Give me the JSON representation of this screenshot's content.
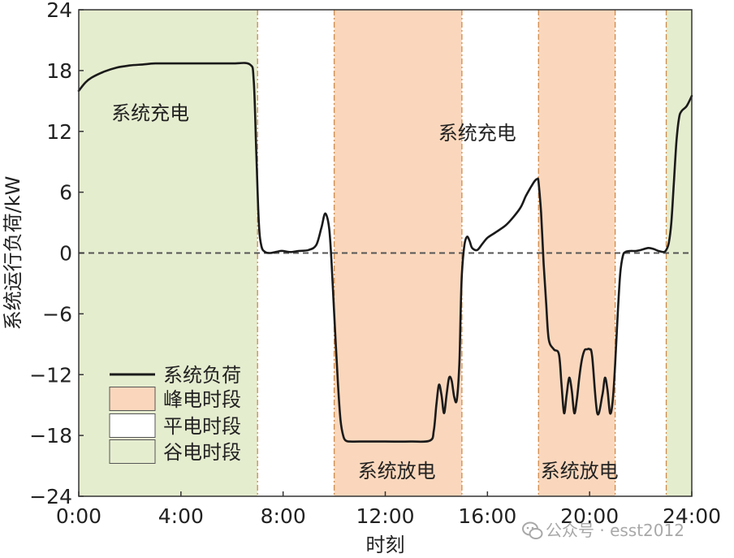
{
  "chart_data": {
    "type": "line",
    "title": "",
    "xlabel": "时刻",
    "ylabel": "系统运行负荷/kW",
    "xlim": [
      0,
      24
    ],
    "ylim": [
      -24,
      24
    ],
    "x_ticks": [
      0,
      4,
      8,
      12,
      16,
      20,
      24
    ],
    "x_tick_labels": [
      "0:00",
      "4:00",
      "8:00",
      "12:00",
      "16:00",
      "20:00",
      "24:00"
    ],
    "y_ticks": [
      24,
      18,
      12,
      6,
      0,
      -6,
      -12,
      -18,
      -24
    ],
    "y_tick_labels": [
      "24",
      "18",
      "12",
      "6",
      "0",
      "−6",
      "−12",
      "−18",
      "−24"
    ],
    "reference_line": {
      "y": 0,
      "style": "dashed"
    },
    "bands": [
      {
        "start": 0,
        "end": 7,
        "kind": "valley"
      },
      {
        "start": 7,
        "end": 10,
        "kind": "flat"
      },
      {
        "start": 10,
        "end": 15,
        "kind": "peak"
      },
      {
        "start": 15,
        "end": 18,
        "kind": "flat"
      },
      {
        "start": 18,
        "end": 21,
        "kind": "peak"
      },
      {
        "start": 21,
        "end": 23,
        "kind": "flat"
      },
      {
        "start": 23,
        "end": 24,
        "kind": "valley"
      }
    ],
    "band_colors": {
      "valley": "#e5edcf",
      "peak": "#fad7bc",
      "flat": "#ffffff"
    },
    "divider_color": "#d08a4a",
    "series": [
      {
        "name": "系统负荷",
        "color": "#1a1a1a",
        "x": [
          0,
          0.25,
          0.5,
          1,
          1.5,
          2,
          2.5,
          3,
          4,
          5,
          6,
          6.7,
          6.85,
          6.95,
          7.05,
          7.15,
          7.3,
          7.5,
          7.7,
          7.9,
          8,
          8.3,
          8.6,
          9,
          9.3,
          9.5,
          9.65,
          9.8,
          9.9,
          10,
          10.15,
          10.25,
          10.35,
          10.45,
          10.6,
          11,
          12,
          13,
          13.75,
          13.9,
          14,
          14.1,
          14.2,
          14.3,
          14.4,
          14.5,
          14.6,
          14.7,
          14.8,
          14.9,
          14.95,
          15,
          15.1,
          15.2,
          15.3,
          15.4,
          15.6,
          15.8,
          16,
          16.3,
          16.7,
          17,
          17.3,
          17.5,
          17.7,
          17.85,
          17.95,
          18,
          18.1,
          18.2,
          18.3,
          18.4,
          18.6,
          18.8,
          18.9,
          19,
          19.1,
          19.2,
          19.3,
          19.4,
          19.5,
          19.6,
          19.7,
          19.8,
          19.9,
          20,
          20.1,
          20.3,
          20.5,
          20.6,
          20.7,
          20.8,
          20.9,
          21,
          21.1,
          21.2,
          21.3,
          21.4,
          21.6,
          21.8,
          22,
          22.3,
          22.5,
          22.7,
          22.9,
          23,
          23.1,
          23.2,
          23.3,
          23.4,
          23.5,
          23.6,
          23.8,
          24
        ],
        "values": [
          16,
          16.8,
          17.3,
          17.9,
          18.3,
          18.5,
          18.6,
          18.7,
          18.7,
          18.7,
          18.7,
          18.6,
          17,
          10,
          3,
          0.7,
          0.1,
          0,
          0.1,
          0.2,
          0.2,
          0.1,
          0.2,
          0.3,
          0.8,
          2.5,
          3.9,
          2.5,
          -1,
          -6,
          -13,
          -16.5,
          -18,
          -18.5,
          -18.6,
          -18.6,
          -18.6,
          -18.6,
          -18.5,
          -17.5,
          -15,
          -13,
          -14,
          -15.8,
          -14,
          -12.3,
          -12.6,
          -14.2,
          -14.5,
          -11,
          -6,
          -2,
          0.8,
          1.6,
          1.2,
          0.5,
          0.3,
          0.9,
          1.5,
          2,
          2.7,
          3.5,
          4.5,
          5.6,
          6.5,
          7.1,
          7.3,
          7,
          4,
          -1,
          -5,
          -8.5,
          -9.5,
          -10,
          -13,
          -15.8,
          -14,
          -12.3,
          -13.5,
          -15.8,
          -14.5,
          -12.2,
          -10.5,
          -9.6,
          -9.5,
          -9.5,
          -10.2,
          -15.8,
          -14,
          -12.3,
          -13.5,
          -15.8,
          -14.7,
          -11,
          -6,
          -2,
          -0.3,
          0.1,
          0.2,
          0.2,
          0.3,
          0.5,
          0.4,
          0.2,
          0.1,
          0.3,
          1,
          3,
          7,
          11,
          13.3,
          14,
          14.5,
          15.5
        ]
      }
    ],
    "annotations": [
      {
        "text": "系统充电",
        "x": 2.8,
        "y": 13.8
      },
      {
        "text": "系统充电",
        "x": 15.6,
        "y": 11.8
      },
      {
        "text": "系统放电",
        "x": 12.45,
        "y": -21.5
      },
      {
        "text": "系统放电",
        "x": 19.6,
        "y": -21.5
      }
    ],
    "legend": {
      "placement": "lower-left",
      "items": [
        {
          "label": "系统负荷",
          "kind": "line",
          "color": "#1a1a1a"
        },
        {
          "label": "峰电时段",
          "kind": "box",
          "color": "#fad7bc"
        },
        {
          "label": "平电时段",
          "kind": "box",
          "color": "#ffffff"
        },
        {
          "label": "谷电时段",
          "kind": "box",
          "color": "#e5edcf"
        }
      ]
    }
  },
  "watermark": {
    "text": "公众号 · esst2012",
    "icon": "wechat-icon"
  }
}
